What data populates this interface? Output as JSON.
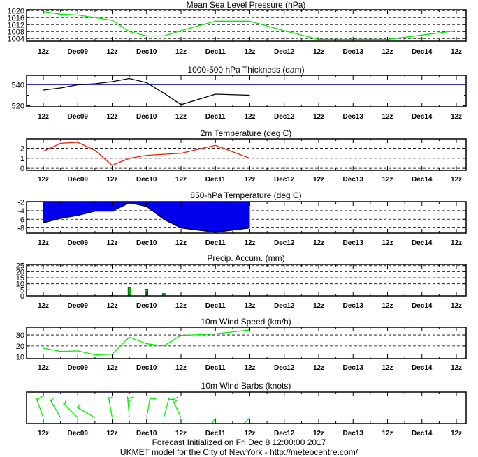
{
  "footer": {
    "initialized": "Forecast Initialized on Fri Dec  8 12:00:00 2017",
    "model": "UKMET model for the City of NewYork - http://meteocentre.com/"
  },
  "colors": {
    "pressure": "#00ee00",
    "thickness_line": "#000000",
    "thickness_ref": "#3333cc",
    "temperature_2m": "#ee2200",
    "temp850_fill": "#0000ee",
    "precip_bar": "#00cc00",
    "wind_speed": "#00ee00",
    "wind_barb": "#00ee00"
  },
  "time_axis": {
    "labels": [
      "12z",
      "Dec09",
      "12z",
      "Dec10",
      "12z",
      "Dec11",
      "12z",
      "Dec12",
      "12z",
      "Dec13",
      "12z",
      "Dec14",
      "12z"
    ],
    "range_hours": [
      0,
      144
    ],
    "tick_step_hours": 6
  },
  "chart_data": [
    {
      "type": "line",
      "title": "Mean Sea Level Pressure (hPa)",
      "x": [
        0,
        6,
        12,
        24,
        30,
        36,
        42,
        48,
        60,
        72,
        84,
        96,
        108,
        120,
        132,
        144
      ],
      "values": [
        1019.5,
        1018,
        1017.5,
        1014.5,
        1008,
        1005.5,
        1005.5,
        1008.5,
        1014,
        1014,
        1008.5,
        1003.5,
        1003.5,
        1003.5,
        1006,
        1008.5
      ],
      "yticks": [
        1004,
        1008,
        1012,
        1016,
        1020
      ],
      "ylim": [
        1002.5,
        1020.5
      ],
      "grid": true
    },
    {
      "type": "line",
      "title": "1000-500 hPa Thickness (dam)",
      "x": [
        0,
        6,
        12,
        18,
        24,
        30,
        36,
        42,
        48,
        60,
        72
      ],
      "values": [
        535,
        537,
        540,
        541,
        543,
        546,
        542,
        532,
        521,
        531,
        530
      ],
      "reference_lines": [
        534,
        540
      ],
      "yticks": [
        520,
        540
      ],
      "minor_yticks": [
        530
      ],
      "ylim": [
        519,
        549
      ],
      "grid": false
    },
    {
      "type": "line",
      "title": "2m Temperature (deg C)",
      "x": [
        0,
        6,
        12,
        18,
        24,
        30,
        36,
        42,
        48,
        60,
        72
      ],
      "values": [
        1.7,
        2.5,
        2.6,
        1.8,
        0.3,
        1.0,
        1.3,
        1.4,
        1.5,
        2.3,
        1.0
      ],
      "yticks": [
        0,
        1,
        2
      ],
      "ylim": [
        -0.2,
        2.95
      ],
      "grid": true
    },
    {
      "type": "area",
      "title": "850-hPa Temperature (deg C)",
      "x": [
        0,
        6,
        12,
        18,
        24,
        30,
        36,
        42,
        48,
        60,
        72
      ],
      "values": [
        -6.8,
        -5.8,
        -5.1,
        -4.1,
        -4.1,
        -2.2,
        -3.0,
        -6.0,
        -8.0,
        -9.0,
        -8.0
      ],
      "yticks": [
        -2,
        -4,
        -6,
        -8
      ],
      "ylim": [
        -9.2,
        -1.9
      ],
      "grid": true
    },
    {
      "type": "bar",
      "title": "Precip. Accum. (mm)",
      "x": [
        24,
        30,
        36,
        42
      ],
      "values": [
        0.3,
        7,
        5.5,
        2
      ],
      "yticks": [
        0,
        5,
        10,
        15,
        20,
        25
      ],
      "ylim": [
        0,
        26
      ],
      "grid": true
    },
    {
      "type": "line",
      "title": "10m Wind Speed (km/h)",
      "x": [
        0,
        6,
        12,
        18,
        24,
        30,
        36,
        42,
        48,
        60,
        72
      ],
      "values": [
        18,
        15,
        15.5,
        12,
        12.5,
        28,
        22,
        20,
        29.5,
        31,
        34.5
      ],
      "yticks": [
        10,
        20,
        30
      ],
      "ylim": [
        8.5,
        37
      ],
      "grid": true
    },
    {
      "type": "scatter",
      "title": "10m Wind Barbs  (knots)",
      "x": [
        0,
        6,
        12,
        18,
        24,
        30,
        36,
        42,
        48,
        60,
        72
      ],
      "direction_deg": [
        340,
        330,
        315,
        300,
        350,
        355,
        10,
        15,
        335,
        210,
        225
      ],
      "speed_kt": [
        10,
        8,
        8,
        7,
        7,
        15,
        12,
        11,
        16,
        17,
        19
      ],
      "grid": false
    }
  ]
}
